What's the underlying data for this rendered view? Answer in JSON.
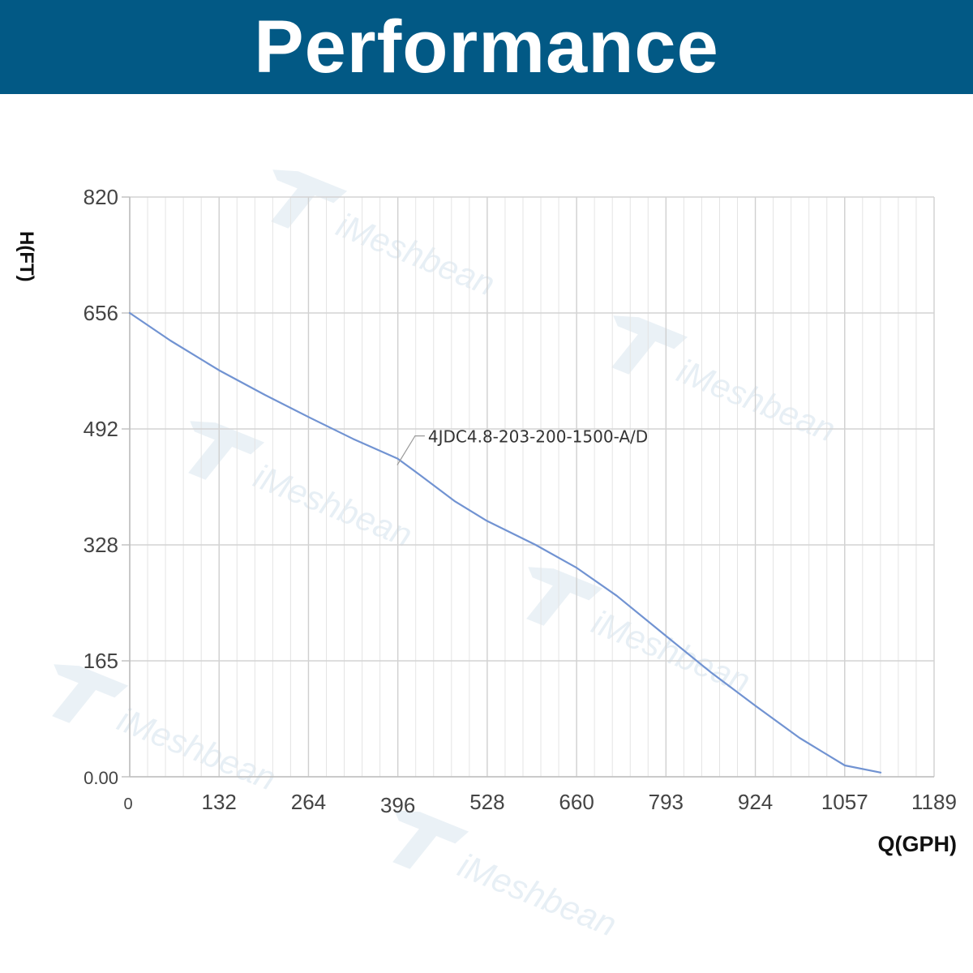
{
  "banner": {
    "title": "Performance"
  },
  "watermark": {
    "text": "iMeshbean"
  },
  "colors": {
    "banner": "#025985",
    "curve": "#7193d2",
    "grid": "#d8d8d8"
  },
  "chart_data": {
    "type": "line",
    "xlabel": "Q(GPH)",
    "ylabel": "H(FT)",
    "x_ticks": [
      "0",
      "132",
      "264",
      "396",
      "528",
      "660",
      "793",
      "924",
      "1057",
      "1189"
    ],
    "y_ticks": [
      "0.00",
      "165",
      "328",
      "492",
      "656",
      "820"
    ],
    "xlim": [
      0,
      1189
    ],
    "ylim": [
      0,
      820
    ],
    "grid": true,
    "series": [
      {
        "name": "4JDC4.8-203-200-1500-A/D",
        "x": [
          0,
          60,
          132,
          200,
          264,
          330,
          396,
          430,
          480,
          528,
          600,
          660,
          720,
          793,
          860,
          924,
          990,
          1057,
          1110
        ],
        "y": [
          656,
          617,
          575,
          540,
          509,
          478,
          450,
          426,
          390,
          362,
          328,
          296,
          256,
          199,
          147,
          101,
          55,
          16,
          6
        ]
      }
    ],
    "annotation": {
      "text": "4JDC4.8-203-200-1500-A/D",
      "x": 405,
      "y": 450
    }
  }
}
